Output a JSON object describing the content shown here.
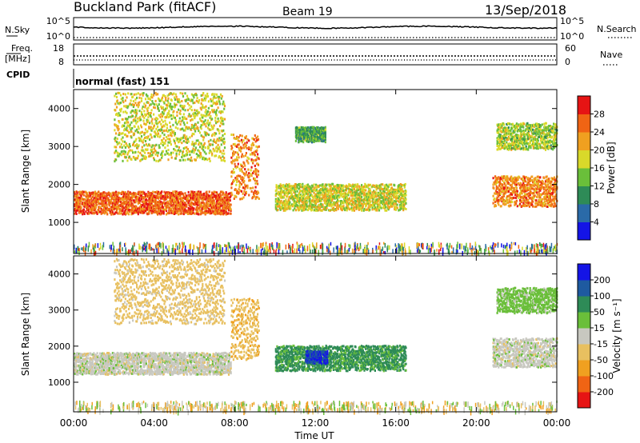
{
  "header": {
    "station": "Buckland Park (fitACF)",
    "beam": "Beam 19",
    "date": "13/Sep/2018"
  },
  "status_panels": {
    "nsky": {
      "label": "N.Sky",
      "ticks": [
        "10^5",
        "10^0"
      ]
    },
    "nsearch": {
      "label": "N.Search",
      "ticks": [
        "10^5",
        "10^0"
      ]
    },
    "freq": {
      "label_line1": "Freq.",
      "label_line2": "[MHz]",
      "ticks": [
        "18",
        "8"
      ]
    },
    "nave": {
      "label": "Nave",
      "ticks": [
        "60",
        "0"
      ]
    },
    "cpid": {
      "label": "CPID",
      "value": "normal (fast) 151"
    }
  },
  "colors": {
    "power_scale": [
      "#1414e6",
      "#2a6aa8",
      "#2e8b57",
      "#6abf3a",
      "#d9d92a",
      "#f0a020",
      "#f06414",
      "#e61414"
    ],
    "velocity_scale": [
      "#e61414",
      "#f06414",
      "#f0a020",
      "#e8c060",
      "#c8c8c0",
      "#6abf3a",
      "#2e8b57",
      "#1e5aa0",
      "#1414e6"
    ],
    "ground_scatter": "#c8c8c0"
  },
  "chart_data": [
    {
      "type": "heatmap",
      "name": "power",
      "ylabel": "Slant Range [km]",
      "ylim": [
        180,
        4500
      ],
      "yticks": [
        "1000",
        "2000",
        "3000",
        "4000"
      ],
      "colorbar": {
        "label": "Power [dB]",
        "ticks": [
          "4",
          "8",
          "12",
          "16",
          "20",
          "24",
          "28"
        ]
      },
      "echo_regions": [
        {
          "t0": 0.0,
          "t1": 7.8,
          "r0": 1200,
          "r1": 1800,
          "level": 26
        },
        {
          "t0": 7.8,
          "t1": 9.2,
          "r0": 1600,
          "r1": 3300,
          "level": 24
        },
        {
          "t0": 2.0,
          "t1": 7.5,
          "r0": 2600,
          "r1": 4400,
          "level": 18
        },
        {
          "t0": 10.0,
          "t1": 16.5,
          "r0": 1300,
          "r1": 2000,
          "level": 18
        },
        {
          "t0": 11.0,
          "t1": 12.5,
          "r0": 3100,
          "r1": 3500,
          "level": 12
        },
        {
          "t0": 20.8,
          "t1": 24.0,
          "r0": 1400,
          "r1": 2200,
          "level": 24
        },
        {
          "t0": 21.0,
          "t1": 24.0,
          "r0": 2900,
          "r1": 3600,
          "level": 16
        }
      ]
    },
    {
      "type": "heatmap",
      "name": "velocity",
      "ylabel": "Slant Range [km]",
      "xlabel": "Time UT",
      "ylim": [
        180,
        4500
      ],
      "yticks": [
        "1000",
        "2000",
        "3000",
        "4000"
      ],
      "xticks": [
        "00:00",
        "04:00",
        "08:00",
        "12:00",
        "16:00",
        "20:00",
        "00:00"
      ],
      "colorbar": {
        "label": "Velocity [m s⁻¹]",
        "ticks": [
          "200",
          "100",
          "50",
          "15",
          "-15",
          "-50",
          "-100",
          "-200"
        ]
      },
      "echo_regions": [
        {
          "t0": 0.0,
          "t1": 7.8,
          "r0": 1200,
          "r1": 1800,
          "velocity": 0
        },
        {
          "t0": 7.8,
          "t1": 9.2,
          "r0": 1600,
          "r1": 3300,
          "velocity": -40
        },
        {
          "t0": 2.0,
          "t1": 7.5,
          "r0": 2600,
          "r1": 4400,
          "velocity": -30
        },
        {
          "t0": 10.0,
          "t1": 16.5,
          "r0": 1300,
          "r1": 2000,
          "velocity": 60
        },
        {
          "t0": 11.5,
          "t1": 12.6,
          "r0": 1500,
          "r1": 1850,
          "velocity": 200
        },
        {
          "t0": 20.8,
          "t1": 24.0,
          "r0": 1400,
          "r1": 2200,
          "velocity": 0
        },
        {
          "t0": 21.0,
          "t1": 24.0,
          "r0": 2900,
          "r1": 3600,
          "velocity": 30
        }
      ]
    }
  ]
}
